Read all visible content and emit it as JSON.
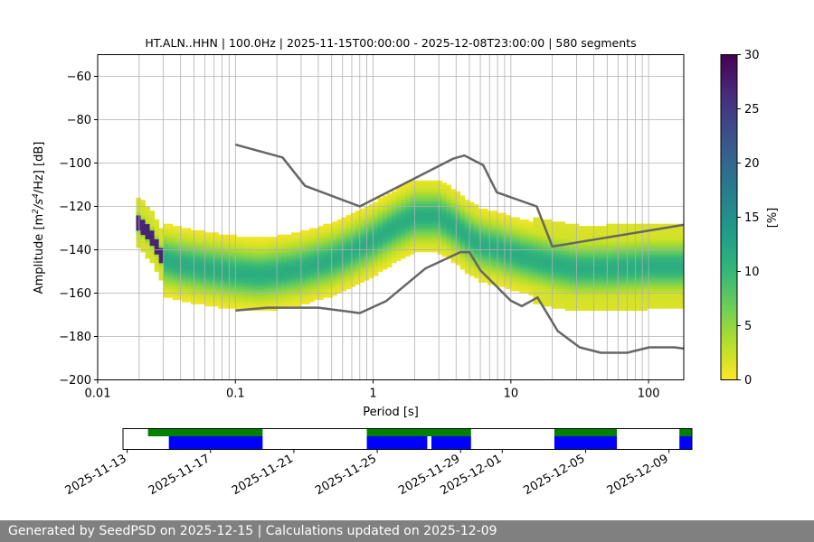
{
  "footer": {
    "text": "Generated by SeedPSD on 2025-12-15 | Calculations updated on 2025-12-09"
  },
  "colors": {
    "nlnm_nhnm": "#666666",
    "grid": "#b0b0b0",
    "coverage_green": "#008000",
    "coverage_blue": "#0000ff",
    "colormap": [
      "#fde725",
      "#b5de2b",
      "#6ece58",
      "#35b779",
      "#1f9e89",
      "#26828e",
      "#31688e",
      "#3e4989",
      "#482878",
      "#440154"
    ]
  },
  "chart_data": [
    {
      "type": "heatmap",
      "title": "HT.ALN..HHN | 100.0Hz | 2025-11-15T00:00:00 - 2025-12-08T23:00:00 | 580 segments",
      "xlabel": "Period [s]",
      "ylabel_parts": {
        "pre": "Amplitude [m",
        "sup1": "2",
        "mid": "/s",
        "sup2": "4",
        "post": "/Hz] [dB]"
      },
      "x_scale": "log",
      "xlim": [
        0.01,
        180
      ],
      "ylim": [
        -200,
        -50
      ],
      "x_ticks": [
        {
          "value": 0.01,
          "label": "0.01"
        },
        {
          "value": 0.1,
          "label": "0.1"
        },
        {
          "value": 1,
          "label": "1"
        },
        {
          "value": 10,
          "label": "10"
        },
        {
          "value": 100,
          "label": "100"
        }
      ],
      "y_ticks": [
        -60,
        -80,
        -100,
        -120,
        -140,
        -160,
        -180,
        -200
      ],
      "grid": true,
      "colorbar": {
        "label": "[%]",
        "min": 0,
        "max": 30,
        "ticks": [
          0,
          5,
          10,
          15,
          20,
          25,
          30
        ],
        "colormap": "viridis_r"
      },
      "psd_mode": {
        "periods": [
          0.02,
          0.025,
          0.03,
          0.04,
          0.06,
          0.1,
          0.15,
          0.2,
          0.3,
          0.5,
          0.7,
          1.0,
          1.5,
          2.0,
          3.0,
          4.0,
          5.0,
          6.0,
          8.0,
          10,
          15,
          20,
          30,
          50,
          100,
          180
        ],
        "db": [
          -128,
          -135,
          -145,
          -147,
          -149,
          -151,
          -152,
          -151,
          -149,
          -145,
          -141,
          -136,
          -129,
          -125,
          -125,
          -130,
          -135,
          -138,
          -140,
          -142,
          -145,
          -147,
          -149,
          -149,
          -148,
          -148
        ]
      },
      "reference_curves": [
        {
          "id": "NHNM",
          "points": [
            [
              0.1,
              -91.5
            ],
            [
              0.22,
              -97.4
            ],
            [
              0.32,
              -110.5
            ],
            [
              0.8,
              -120
            ],
            [
              3.8,
              -98
            ],
            [
              4.6,
              -96.5
            ],
            [
              6.3,
              -101
            ],
            [
              7.9,
              -113.5
            ],
            [
              15.4,
              -120
            ],
            [
              20,
              -138.5
            ],
            [
              180,
              -128.5
            ]
          ]
        },
        {
          "id": "NLNM",
          "points": [
            [
              0.1,
              -168
            ],
            [
              0.17,
              -166.7
            ],
            [
              0.4,
              -166.7
            ],
            [
              0.8,
              -169.2
            ],
            [
              1.24,
              -163.7
            ],
            [
              2.4,
              -148.6
            ],
            [
              4.3,
              -141.1
            ],
            [
              5.0,
              -141.1
            ],
            [
              6.0,
              -149.4
            ],
            [
              10,
              -163.5
            ],
            [
              12,
              -166
            ],
            [
              15.6,
              -162
            ],
            [
              21.9,
              -177.5
            ],
            [
              31.6,
              -185
            ],
            [
              45,
              -187.5
            ],
            [
              70,
              -187.5
            ],
            [
              101,
              -185
            ],
            [
              154,
              -185
            ],
            [
              180,
              -185.6
            ]
          ]
        }
      ]
    },
    {
      "type": "timeline",
      "x_ticks": [
        "2025-11-13",
        "2025-11-17",
        "2025-11-21",
        "2025-11-25",
        "2025-11-29",
        "2025-12-01",
        "2025-12-05",
        "2025-12-09"
      ],
      "x_tick_days": [
        -2,
        2,
        6,
        10,
        14,
        16,
        20,
        24
      ],
      "xlim_days": [
        -2.2,
        25.1
      ],
      "green_segments": [
        [
          -1,
          4.5
        ],
        [
          9.5,
          14.5
        ],
        [
          18.5,
          21.5
        ],
        [
          24.5,
          25.5
        ]
      ],
      "blue_segments": [
        [
          0,
          4.5
        ],
        [
          9.5,
          12.4
        ],
        [
          12.6,
          14.5
        ],
        [
          18.5,
          21.5
        ],
        [
          24.5,
          25.5
        ]
      ]
    }
  ]
}
